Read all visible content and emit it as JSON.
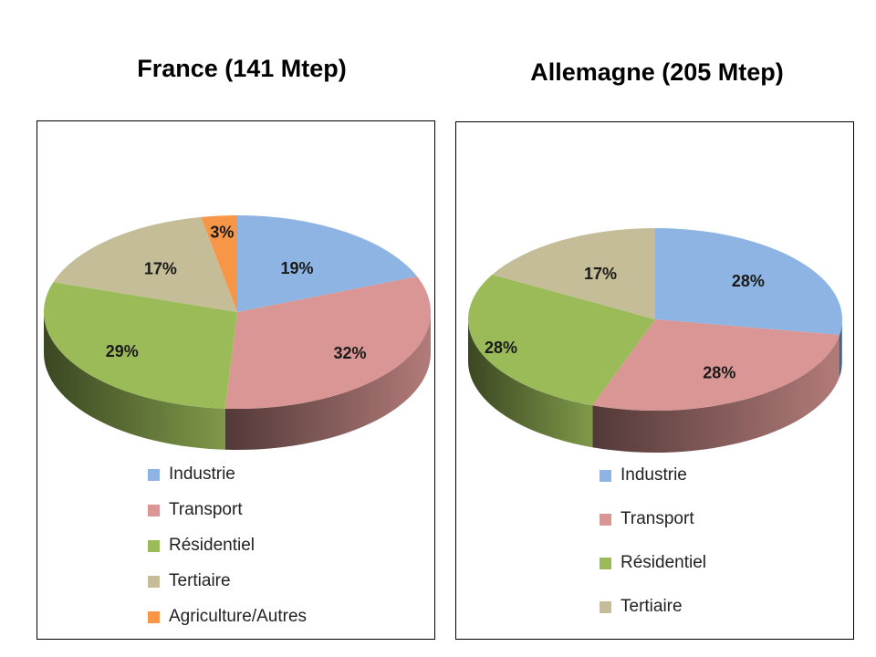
{
  "chart_data": [
    {
      "type": "pie",
      "title": "France (141 Mtep)",
      "categories": [
        "Industrie",
        "Transport",
        "Résidentiel",
        "Tertiaire",
        "Agriculture/Autres"
      ],
      "values": [
        19,
        32,
        29,
        17,
        3
      ],
      "labels": [
        "19%",
        "32%",
        "29%",
        "17%",
        "3%"
      ],
      "colors": [
        "#8EB4E3",
        "#D99694",
        "#9BBB59",
        "#C4BD97",
        "#F79646"
      ],
      "legend_position": "bottom"
    },
    {
      "type": "pie",
      "title": "Allemagne (205 Mtep)",
      "categories": [
        "Industrie",
        "Transport",
        "Résidentiel",
        "Tertiaire"
      ],
      "values": [
        28,
        28,
        28,
        17
      ],
      "labels": [
        "28%",
        "28%",
        "28%",
        "17%"
      ],
      "colors": [
        "#8EB4E3",
        "#D99694",
        "#9BBB59",
        "#C4BD97"
      ],
      "legend_position": "bottom"
    }
  ]
}
